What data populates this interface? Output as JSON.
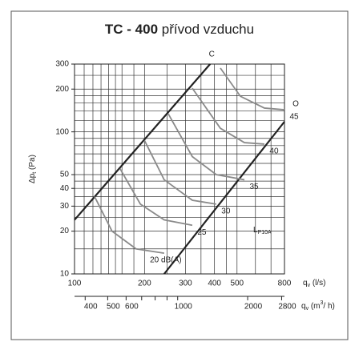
{
  "chart_data": {
    "type": "line",
    "title_bold": "TC - 400",
    "title_rest": "přívod vzduchu",
    "ylabel": [
      "Δp",
      "t",
      " (Pa)"
    ],
    "xlabel": [
      "q",
      "v",
      " (l/s)"
    ],
    "x2label": [
      "q",
      "v",
      " (m",
      "3",
      "/ h)"
    ],
    "annotation": [
      "L",
      "P10A"
    ],
    "log_x": true,
    "log_y": true,
    "xlim": [
      100,
      800
    ],
    "ylim": [
      10,
      300
    ],
    "xticks": [
      100,
      200,
      300,
      400,
      500,
      800
    ],
    "yticks": [
      10,
      20,
      30,
      40,
      50,
      100,
      200,
      300
    ],
    "x2lim": [
      360,
      2880
    ],
    "x2ticks": [
      400,
      500,
      600,
      1000,
      2000,
      2800
    ],
    "x2minor": [
      700,
      800,
      900
    ],
    "xgrid": [
      100,
      110,
      120,
      130,
      140,
      150,
      160,
      180,
      200,
      250,
      300,
      350,
      400,
      450,
      500,
      600,
      700,
      800
    ],
    "ygrid": [
      10,
      15,
      20,
      25,
      30,
      35,
      40,
      45,
      50,
      60,
      70,
      80,
      90,
      100,
      120,
      140,
      160,
      180,
      200,
      250,
      300
    ],
    "grid": true,
    "series": [
      {
        "name": "C",
        "color": "#222222",
        "x": [
          100,
          383
        ],
        "y": [
          24,
          300
        ]
      },
      {
        "name": "O",
        "color": "#222222",
        "x": [
          243,
          800
        ],
        "y": [
          10,
          118
        ]
      },
      {
        "name": "45",
        "color": "#8a8a8a",
        "x": [
          424,
          517,
          656,
          800
        ],
        "y": [
          281,
          178,
          147,
          143
        ]
      },
      {
        "name": "40",
        "color": "#8a8a8a",
        "x": [
          321,
          424,
          538,
          656
        ],
        "y": [
          203,
          106,
          84,
          82
        ]
      },
      {
        "name": "35",
        "color": "#8a8a8a",
        "x": [
          253,
          321,
          407,
          538
        ],
        "y": [
          134,
          67,
          50,
          46
        ]
      },
      {
        "name": "30",
        "color": "#8a8a8a",
        "x": [
          200,
          243,
          321,
          407
        ],
        "y": [
          87,
          46,
          33,
          31
        ]
      },
      {
        "name": "25",
        "color": "#8a8a8a",
        "x": [
          157,
          192,
          243,
          321
        ],
        "y": [
          55,
          31,
          24,
          22
        ]
      },
      {
        "name": "20 dB(A)",
        "color": "#8a8a8a",
        "x": [
          122,
          145,
          184,
          243
        ],
        "y": [
          35,
          20,
          15,
          14
        ]
      }
    ]
  }
}
